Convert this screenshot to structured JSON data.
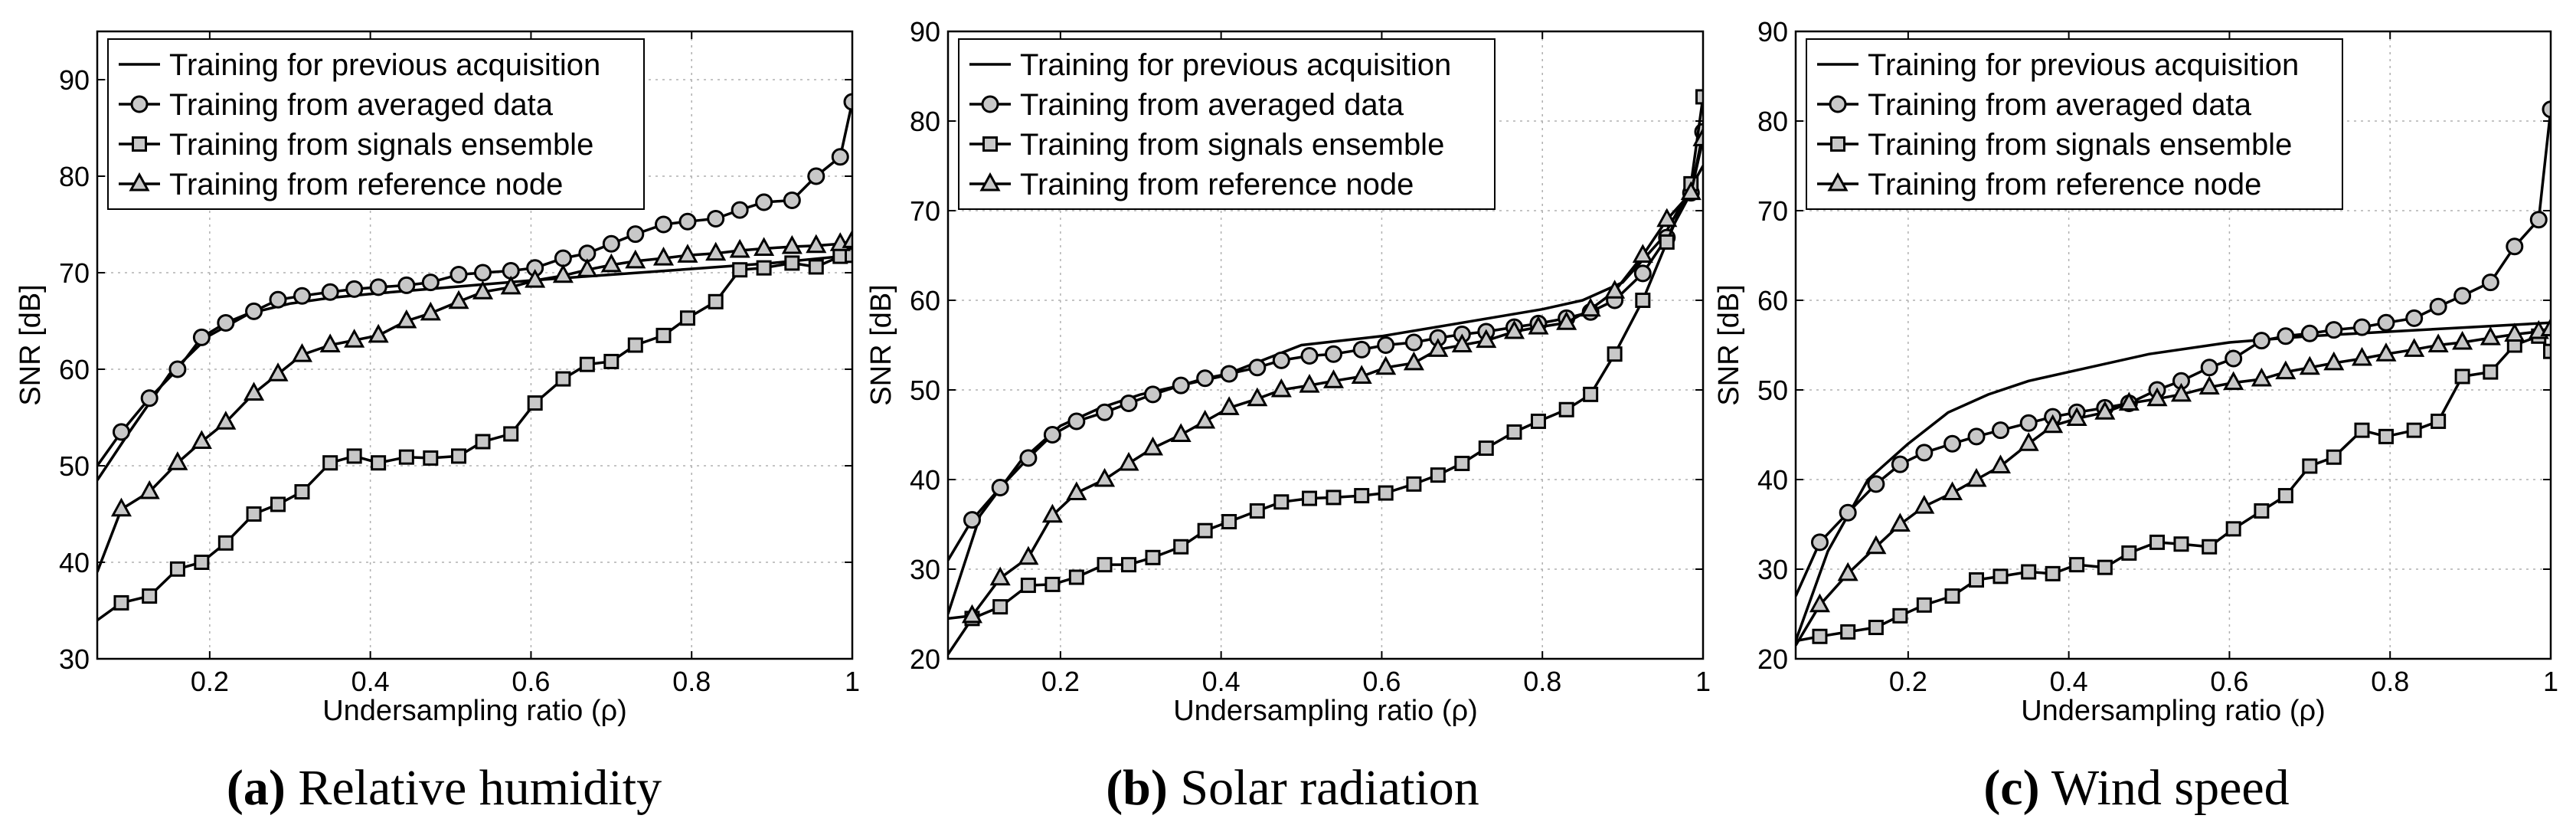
{
  "chart_data": [
    {
      "type": "line",
      "caption_label": "(a)",
      "caption_text": "Relative humidity",
      "xlabel": "Undersampling ratio (ρ)",
      "ylabel": "SNR [dB]",
      "xlim": [
        0.06,
        1.0
      ],
      "ylim": [
        30,
        95
      ],
      "xticks": [
        "0.2",
        "0.4",
        "0.6",
        "0.8",
        "1"
      ],
      "xtick_values": [
        0.2,
        0.4,
        0.6,
        0.8,
        1.0
      ],
      "yticks": [
        "30",
        "40",
        "50",
        "60",
        "70",
        "80",
        "90"
      ],
      "ytick_values": [
        30,
        40,
        50,
        60,
        70,
        80,
        90
      ],
      "grid": true,
      "legend": "top-left",
      "series": [
        {
          "name": "Training for previous acquisition",
          "marker": "none",
          "x": [
            0.06,
            0.1,
            0.15,
            0.2,
            0.25,
            0.3,
            0.35,
            0.4,
            0.5,
            0.6,
            0.7,
            0.8,
            0.9,
            1.0
          ],
          "y": [
            48.5,
            53.5,
            59.5,
            63.5,
            65.8,
            66.8,
            67.4,
            67.8,
            68.5,
            69.2,
            69.8,
            70.4,
            71,
            71.8
          ]
        },
        {
          "name": "Training from averaged data",
          "marker": "circle",
          "x": [
            0.06,
            0.09,
            0.125,
            0.16,
            0.19,
            0.22,
            0.255,
            0.285,
            0.315,
            0.35,
            0.38,
            0.41,
            0.445,
            0.475,
            0.51,
            0.54,
            0.575,
            0.605,
            0.64,
            0.67,
            0.7,
            0.73,
            0.765,
            0.795,
            0.83,
            0.86,
            0.89,
            0.925,
            0.955,
            0.985,
            1.0
          ],
          "y": [
            50,
            53.5,
            57,
            60,
            63.3,
            64.8,
            66,
            67.2,
            67.6,
            68,
            68.3,
            68.5,
            68.7,
            69,
            69.8,
            70,
            70.2,
            70.5,
            71.5,
            72,
            73,
            74,
            75,
            75.3,
            75.6,
            76.5,
            77.3,
            77.5,
            80,
            82,
            87.7
          ]
        },
        {
          "name": "Training from signals ensemble",
          "marker": "square",
          "x": [
            0.06,
            0.09,
            0.125,
            0.16,
            0.19,
            0.22,
            0.255,
            0.285,
            0.315,
            0.35,
            0.38,
            0.41,
            0.445,
            0.475,
            0.51,
            0.54,
            0.575,
            0.605,
            0.64,
            0.67,
            0.7,
            0.73,
            0.765,
            0.795,
            0.83,
            0.86,
            0.89,
            0.925,
            0.955,
            0.985,
            1.0
          ],
          "y": [
            34,
            35.8,
            36.5,
            39.3,
            40,
            42,
            45,
            46,
            47.3,
            50.3,
            51,
            50.3,
            50.9,
            50.8,
            51,
            52.5,
            53.3,
            56.5,
            59,
            60.5,
            60.8,
            62.5,
            63.5,
            65.3,
            67,
            70.3,
            70.5,
            71,
            70.6,
            71.7,
            71.8
          ]
        },
        {
          "name": "Training from reference node",
          "marker": "triangle",
          "x": [
            0.06,
            0.09,
            0.125,
            0.16,
            0.19,
            0.22,
            0.255,
            0.285,
            0.315,
            0.35,
            0.38,
            0.41,
            0.445,
            0.475,
            0.51,
            0.54,
            0.575,
            0.605,
            0.64,
            0.67,
            0.7,
            0.73,
            0.765,
            0.795,
            0.83,
            0.86,
            0.89,
            0.925,
            0.955,
            0.985,
            1.0
          ],
          "y": [
            39,
            45.5,
            47.3,
            50.3,
            52.5,
            54.5,
            57.5,
            59.5,
            61.5,
            62.5,
            63,
            63.5,
            65,
            65.8,
            67,
            68,
            68.5,
            69.2,
            69.7,
            70.3,
            70.8,
            71.2,
            71.5,
            71.8,
            72,
            72.3,
            72.5,
            72.7,
            72.8,
            73,
            73.3
          ]
        }
      ]
    },
    {
      "type": "line",
      "caption_label": "(b)",
      "caption_text": "Solar radiation",
      "xlabel": "Undersampling ratio (ρ)",
      "ylabel": "SNR [dB]",
      "xlim": [
        0.06,
        1.0
      ],
      "ylim": [
        20,
        90
      ],
      "xticks": [
        "0.2",
        "0.4",
        "0.6",
        "0.8",
        "1"
      ],
      "xtick_values": [
        0.2,
        0.4,
        0.6,
        0.8,
        1.0
      ],
      "yticks": [
        "20",
        "30",
        "40",
        "50",
        "60",
        "70",
        "80",
        "90"
      ],
      "ytick_values": [
        20,
        30,
        40,
        50,
        60,
        70,
        80,
        90
      ],
      "grid": true,
      "legend": "top-left",
      "series": [
        {
          "name": "Training for previous acquisition",
          "marker": "none",
          "x": [
            0.06,
            0.1,
            0.15,
            0.2,
            0.25,
            0.3,
            0.35,
            0.4,
            0.5,
            0.6,
            0.7,
            0.8,
            0.85,
            0.9,
            0.95,
            1.0
          ],
          "y": [
            25,
            36,
            42,
            46,
            48,
            49.5,
            50.5,
            51.5,
            55,
            56,
            57.5,
            59,
            60,
            62,
            67,
            75
          ]
        },
        {
          "name": "Training from averaged data",
          "marker": "circle",
          "x": [
            0.06,
            0.09,
            0.125,
            0.16,
            0.19,
            0.22,
            0.255,
            0.285,
            0.315,
            0.35,
            0.38,
            0.41,
            0.445,
            0.475,
            0.51,
            0.54,
            0.575,
            0.605,
            0.64,
            0.67,
            0.7,
            0.73,
            0.765,
            0.795,
            0.83,
            0.86,
            0.89,
            0.925,
            0.955,
            0.985,
            1.0
          ],
          "y": [
            31,
            35.5,
            39.1,
            42.4,
            45,
            46.5,
            47.5,
            48.5,
            49.5,
            50.5,
            51.3,
            51.8,
            52.5,
            53.3,
            53.8,
            54,
            54.5,
            55,
            55.3,
            55.8,
            56.2,
            56.5,
            57,
            57.4,
            58,
            58.7,
            60,
            63,
            67,
            72,
            78.8
          ]
        },
        {
          "name": "Training from signals ensemble",
          "marker": "square",
          "x": [
            0.06,
            0.09,
            0.125,
            0.16,
            0.19,
            0.22,
            0.255,
            0.285,
            0.315,
            0.35,
            0.38,
            0.41,
            0.445,
            0.475,
            0.51,
            0.54,
            0.575,
            0.605,
            0.64,
            0.67,
            0.7,
            0.73,
            0.765,
            0.795,
            0.83,
            0.86,
            0.89,
            0.925,
            0.955,
            0.985,
            1.0
          ],
          "y": [
            20.5,
            24.5,
            25.8,
            28.2,
            28.3,
            29.1,
            30.5,
            30.5,
            31.3,
            32.5,
            34.3,
            35.3,
            36.5,
            37.5,
            37.9,
            38,
            38.2,
            38.5,
            39.5,
            40.5,
            41.8,
            43.5,
            45.3,
            46.5,
            47.8,
            49.5,
            54,
            60,
            66.5,
            73,
            82.7
          ]
        },
        {
          "name": "Training from reference node",
          "marker": "triangle",
          "x": [
            0.06,
            0.09,
            0.125,
            0.16,
            0.19,
            0.22,
            0.255,
            0.285,
            0.315,
            0.35,
            0.38,
            0.41,
            0.445,
            0.475,
            0.51,
            0.54,
            0.575,
            0.605,
            0.64,
            0.67,
            0.7,
            0.73,
            0.765,
            0.795,
            0.83,
            0.86,
            0.89,
            0.925,
            0.955,
            0.985,
            1.0
          ],
          "y": [
            24.5,
            24.8,
            29,
            31.3,
            36,
            38.5,
            40,
            41.8,
            43.5,
            45,
            46.5,
            48,
            49,
            50,
            50.5,
            51,
            51.5,
            52.5,
            53,
            54.5,
            55,
            55.5,
            56.5,
            57,
            57.5,
            59,
            61,
            65,
            69,
            72,
            78
          ]
        }
      ]
    },
    {
      "type": "line",
      "caption_label": "(c)",
      "caption_text": "Wind speed",
      "xlabel": "Undersampling ratio (ρ)",
      "ylabel": "SNR [dB]",
      "xlim": [
        0.06,
        1.0
      ],
      "ylim": [
        20,
        90
      ],
      "xticks": [
        "0.2",
        "0.4",
        "0.6",
        "0.8",
        "1"
      ],
      "xtick_values": [
        0.2,
        0.4,
        0.6,
        0.8,
        1.0
      ],
      "yticks": [
        "20",
        "30",
        "40",
        "50",
        "60",
        "70",
        "80",
        "90"
      ],
      "ytick_values": [
        20,
        30,
        40,
        50,
        60,
        70,
        80,
        90
      ],
      "grid": true,
      "legend": "top-left",
      "series": [
        {
          "name": "Training for previous acquisition",
          "marker": "none",
          "x": [
            0.06,
            0.1,
            0.15,
            0.2,
            0.25,
            0.3,
            0.35,
            0.4,
            0.5,
            0.6,
            0.7,
            0.8,
            0.9,
            1.0
          ],
          "y": [
            22,
            32,
            40,
            44,
            47.5,
            49.5,
            51,
            52,
            54,
            55.3,
            56,
            56.5,
            57,
            57.5
          ]
        },
        {
          "name": "Training from averaged data",
          "marker": "circle",
          "x": [
            0.06,
            0.09,
            0.125,
            0.16,
            0.19,
            0.22,
            0.255,
            0.285,
            0.315,
            0.35,
            0.38,
            0.41,
            0.445,
            0.475,
            0.51,
            0.54,
            0.575,
            0.605,
            0.64,
            0.67,
            0.7,
            0.73,
            0.765,
            0.795,
            0.83,
            0.86,
            0.89,
            0.925,
            0.955,
            0.985,
            1.0
          ],
          "y": [
            27,
            33,
            36.3,
            39.5,
            41.7,
            43,
            44,
            44.8,
            45.5,
            46.3,
            47,
            47.5,
            48,
            48.5,
            50,
            51,
            52.5,
            53.5,
            55.5,
            56,
            56.3,
            56.7,
            57,
            57.5,
            58,
            59.3,
            60.5,
            62,
            66,
            69,
            81.3
          ]
        },
        {
          "name": "Training from signals ensemble",
          "marker": "square",
          "x": [
            0.06,
            0.09,
            0.125,
            0.16,
            0.19,
            0.22,
            0.255,
            0.285,
            0.315,
            0.35,
            0.38,
            0.41,
            0.445,
            0.475,
            0.51,
            0.54,
            0.575,
            0.605,
            0.64,
            0.67,
            0.7,
            0.73,
            0.765,
            0.795,
            0.83,
            0.86,
            0.89,
            0.925,
            0.955,
            0.985,
            1.0
          ],
          "y": [
            22,
            22.5,
            23,
            23.5,
            24.8,
            26,
            27,
            28.8,
            29.2,
            29.7,
            29.5,
            30.5,
            30.2,
            31.8,
            33,
            32.8,
            32.5,
            34.5,
            36.5,
            38.2,
            41.5,
            42.5,
            45.5,
            44.8,
            45.5,
            46.5,
            51.5,
            52,
            55,
            56,
            54.3
          ]
        },
        {
          "name": "Training from reference node",
          "marker": "triangle",
          "x": [
            0.06,
            0.09,
            0.125,
            0.16,
            0.19,
            0.22,
            0.255,
            0.285,
            0.315,
            0.35,
            0.38,
            0.41,
            0.445,
            0.475,
            0.51,
            0.54,
            0.575,
            0.605,
            0.64,
            0.67,
            0.7,
            0.73,
            0.765,
            0.795,
            0.83,
            0.86,
            0.89,
            0.925,
            0.955,
            0.985,
            1.0
          ],
          "y": [
            21.5,
            26,
            29.5,
            32.5,
            35,
            37,
            38.5,
            40,
            41.5,
            44,
            46,
            46.8,
            47.5,
            48.5,
            49,
            49.5,
            50.3,
            50.8,
            51.2,
            52,
            52.5,
            53,
            53.5,
            54,
            54.5,
            55,
            55.3,
            55.8,
            56.2,
            56.5,
            56.8
          ]
        }
      ]
    }
  ]
}
